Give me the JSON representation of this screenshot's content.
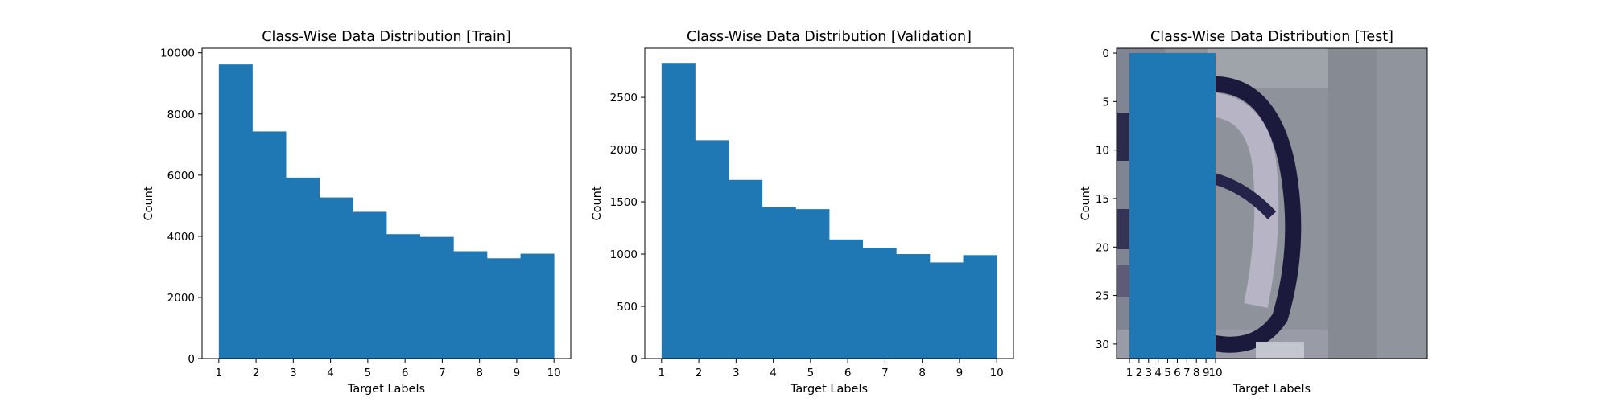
{
  "chart_data": [
    {
      "type": "bar",
      "title": "Class-Wise Data Distribution [Train]",
      "xlabel": "Target Labels",
      "ylabel": "Count",
      "xlim": [
        0.55,
        10.45
      ],
      "ylim": [
        0,
        10150
      ],
      "xticks": [
        1,
        2,
        3,
        4,
        5,
        6,
        7,
        8,
        9,
        10
      ],
      "yticks": [
        0,
        2000,
        4000,
        6000,
        8000,
        10000
      ],
      "bin_edges": [
        1,
        1.9,
        2.8,
        3.7,
        4.6,
        5.5,
        6.4,
        7.3,
        8.2,
        9.1,
        10
      ],
      "values": [
        9620,
        7430,
        5920,
        5270,
        4800,
        4070,
        3980,
        3510,
        3280,
        3430
      ],
      "bar_color": "#1f77b4",
      "grid": false
    },
    {
      "type": "bar",
      "title": "Class-Wise Data Distribution [Validation]",
      "xlabel": "Target Labels",
      "ylabel": "Count",
      "xlim": [
        0.55,
        10.45
      ],
      "ylim": [
        0,
        2970
      ],
      "xticks": [
        1,
        2,
        3,
        4,
        5,
        6,
        7,
        8,
        9,
        10
      ],
      "yticks": [
        0,
        500,
        1000,
        1500,
        2000,
        2500
      ],
      "bin_edges": [
        1,
        1.9,
        2.8,
        3.7,
        4.6,
        5.5,
        6.4,
        7.3,
        8.2,
        9.1,
        10
      ],
      "values": [
        2830,
        2090,
        1710,
        1450,
        1430,
        1140,
        1060,
        1000,
        920,
        990
      ],
      "bar_color": "#1f77b4",
      "grid": false
    },
    {
      "type": "heatmap",
      "title": "Class-Wise Data Distribution [Test]",
      "xlabel": "Target Labels",
      "ylabel": "Count",
      "yticks": [
        0,
        5,
        10,
        15,
        20,
        25,
        30
      ],
      "xticks": [
        1,
        2,
        3,
        4,
        5,
        6,
        7,
        8,
        9,
        10
      ],
      "image_size": [
        32,
        32
      ],
      "overlay_bar": {
        "x_range": [
          1,
          10
        ],
        "color": "#1f77b4"
      },
      "grid": false
    }
  ]
}
